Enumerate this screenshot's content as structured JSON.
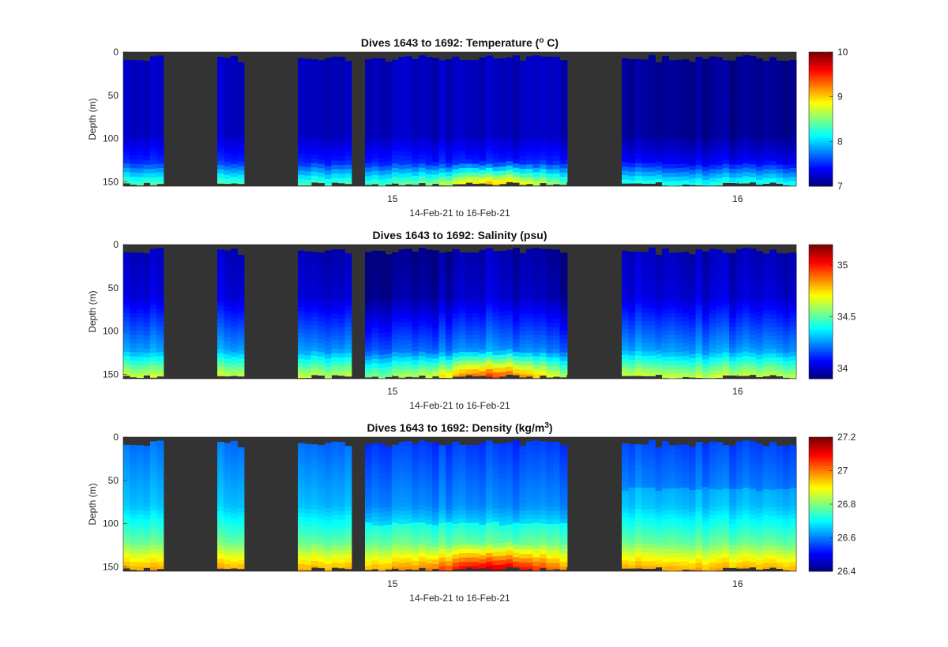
{
  "figure": {
    "background": "#ffffff",
    "gap_color": "#333333",
    "colormap": "jet"
  },
  "chart_data": [
    {
      "type": "heatmap",
      "title_parts": [
        "Dives 1643 to 1692: Temperature (",
        "o",
        " C)"
      ],
      "ylabel": "Depth (m)",
      "xlabel": "14-Feb-21 to 16-Feb-21",
      "ylim": [
        0,
        155
      ],
      "y_reversed": true,
      "yticks": [
        0,
        50,
        100,
        150
      ],
      "xticks": [
        {
          "day": 15,
          "label": "15"
        },
        {
          "day": 16,
          "label": "16"
        }
      ],
      "xlim_days": [
        14.22,
        16.17
      ],
      "clim": [
        7,
        10
      ],
      "cbar_ticks": [
        7,
        8,
        9,
        10
      ],
      "variable": "temperature"
    },
    {
      "type": "heatmap",
      "title_parts": [
        "Dives 1643 to 1692: Salinity (psu)"
      ],
      "ylabel": "Depth (m)",
      "xlabel": "14-Feb-21 to 16-Feb-21",
      "ylim": [
        0,
        155
      ],
      "y_reversed": true,
      "yticks": [
        0,
        50,
        100,
        150
      ],
      "xticks": [
        {
          "day": 15,
          "label": "15"
        },
        {
          "day": 16,
          "label": "16"
        }
      ],
      "xlim_days": [
        14.22,
        16.17
      ],
      "clim": [
        33.9,
        35.2
      ],
      "cbar_ticks": [
        34,
        34.5,
        35
      ],
      "variable": "salinity"
    },
    {
      "type": "heatmap",
      "title_parts": [
        "Dives 1643 to 1692: Density (kg/m",
        "3",
        ")"
      ],
      "ylabel": "Depth (m)",
      "xlabel": "14-Feb-21 to 16-Feb-21",
      "ylim": [
        0,
        155
      ],
      "y_reversed": true,
      "yticks": [
        0,
        50,
        100,
        150
      ],
      "xticks": [
        {
          "day": 15,
          "label": "15"
        },
        {
          "day": 16,
          "label": "16"
        }
      ],
      "xlim_days": [
        14.22,
        16.17
      ],
      "clim": [
        26.4,
        27.2
      ],
      "cbar_ticks": [
        26.4,
        26.6,
        26.8,
        27,
        27.2
      ],
      "variable": "density"
    }
  ]
}
